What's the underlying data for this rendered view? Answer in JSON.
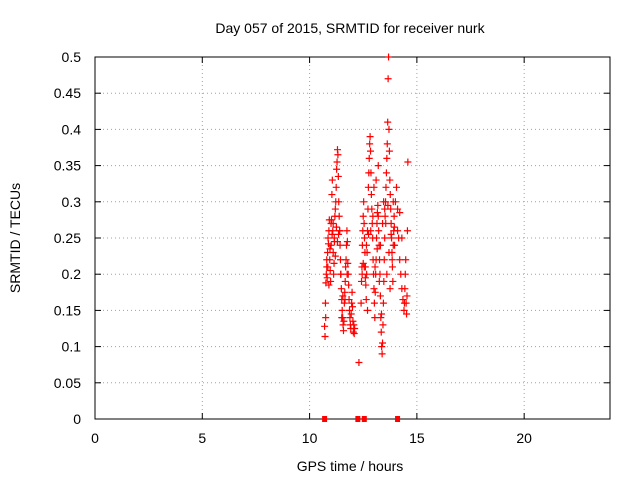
{
  "chart_data": {
    "type": "scatter",
    "title": "Day 057 of 2015, SRMTID for receiver nurk",
    "xlabel": "GPS time / hours",
    "ylabel": "SRMTID / TECUs",
    "xlim": [
      0,
      24
    ],
    "ylim": [
      0,
      0.5
    ],
    "grid": true,
    "marker": "+",
    "marker_color": "#ff0000",
    "x_ticks": [
      0,
      5,
      10,
      15,
      20
    ],
    "x_tick_labels": [
      "0",
      "5",
      "10",
      "15",
      "20"
    ],
    "y_ticks": [
      0,
      0.05,
      0.1,
      0.15,
      0.2,
      0.25,
      0.3,
      0.35,
      0.4,
      0.45,
      0.5
    ],
    "y_tick_labels": [
      "0",
      "0.05",
      "0.1",
      "0.15",
      "0.2",
      "0.25",
      "0.3",
      "0.35",
      "0.4",
      "0.45",
      "0.5"
    ],
    "series": [
      {
        "name": "SRMTID",
        "points": [
          [
            10.7,
            0.128
          ],
          [
            10.72,
            0.114
          ],
          [
            10.74,
            0.16
          ],
          [
            10.76,
            0.188
          ],
          [
            10.78,
            0.2
          ],
          [
            10.8,
            0.21
          ],
          [
            10.82,
            0.195
          ],
          [
            10.84,
            0.23
          ],
          [
            10.86,
            0.25
          ],
          [
            10.88,
            0.242
          ],
          [
            10.9,
            0.26
          ],
          [
            10.92,
            0.275
          ],
          [
            10.94,
            0.22
          ],
          [
            10.96,
            0.205
          ],
          [
            10.98,
            0.19
          ],
          [
            11.0,
            0.24
          ],
          [
            11.02,
            0.275
          ],
          [
            11.04,
            0.31
          ],
          [
            11.06,
            0.33
          ],
          [
            11.08,
            0.26
          ],
          [
            11.1,
            0.23
          ],
          [
            11.12,
            0.2
          ],
          [
            11.14,
            0.215
          ],
          [
            11.16,
            0.245
          ],
          [
            11.18,
            0.28
          ],
          [
            11.2,
            0.29
          ],
          [
            11.22,
            0.3
          ],
          [
            11.24,
            0.32
          ],
          [
            11.26,
            0.345
          ],
          [
            11.28,
            0.355
          ],
          [
            11.3,
            0.372
          ],
          [
            11.32,
            0.365
          ],
          [
            11.34,
            0.335
          ],
          [
            11.36,
            0.3
          ],
          [
            11.38,
            0.28
          ],
          [
            11.4,
            0.26
          ],
          [
            11.42,
            0.24
          ],
          [
            11.44,
            0.22
          ],
          [
            11.46,
            0.2
          ],
          [
            11.48,
            0.18
          ],
          [
            11.5,
            0.165
          ],
          [
            11.52,
            0.15
          ],
          [
            11.54,
            0.14
          ],
          [
            11.56,
            0.13
          ],
          [
            11.58,
            0.122
          ],
          [
            11.6,
            0.135
          ],
          [
            11.62,
            0.16
          ],
          [
            11.64,
            0.175
          ],
          [
            11.66,
            0.19
          ],
          [
            11.68,
            0.21
          ],
          [
            11.7,
            0.22
          ],
          [
            11.72,
            0.24
          ],
          [
            11.74,
            0.26
          ],
          [
            11.76,
            0.245
          ],
          [
            11.78,
            0.215
          ],
          [
            11.8,
            0.2
          ],
          [
            11.82,
            0.185
          ],
          [
            11.84,
            0.165
          ],
          [
            11.86,
            0.15
          ],
          [
            11.88,
            0.14
          ],
          [
            11.9,
            0.13
          ],
          [
            11.92,
            0.125
          ],
          [
            11.94,
            0.145
          ],
          [
            11.96,
            0.16
          ],
          [
            11.98,
            0.175
          ],
          [
            12.0,
            0.155
          ],
          [
            12.02,
            0.135
          ],
          [
            12.04,
            0.12
          ],
          [
            12.06,
            0.13
          ],
          [
            12.08,
            0.118
          ],
          [
            12.1,
            0.125
          ],
          [
            11.0,
            0.27
          ],
          [
            11.05,
            0.255
          ],
          [
            11.15,
            0.25
          ],
          [
            11.25,
            0.265
          ],
          [
            11.35,
            0.255
          ],
          [
            11.45,
            0.2
          ],
          [
            11.55,
            0.17
          ],
          [
            11.65,
            0.165
          ],
          [
            11.75,
            0.2
          ],
          [
            10.75,
            0.14
          ],
          [
            10.8,
            0.22
          ],
          [
            10.85,
            0.21
          ],
          [
            10.9,
            0.185
          ],
          [
            10.95,
            0.235
          ],
          [
            11.1,
            0.27
          ],
          [
            11.2,
            0.225
          ],
          [
            11.3,
            0.245
          ],
          [
            11.4,
            0.26
          ],
          [
            11.5,
            0.14
          ],
          [
            12.3,
            0.078
          ],
          [
            12.4,
            0.16
          ],
          [
            12.42,
            0.19
          ],
          [
            12.44,
            0.21
          ],
          [
            12.46,
            0.24
          ],
          [
            12.48,
            0.26
          ],
          [
            12.5,
            0.28
          ],
          [
            12.52,
            0.3
          ],
          [
            12.54,
            0.27
          ],
          [
            12.56,
            0.25
          ],
          [
            12.58,
            0.23
          ],
          [
            12.6,
            0.21
          ],
          [
            12.62,
            0.185
          ],
          [
            12.64,
            0.165
          ],
          [
            12.66,
            0.2
          ],
          [
            12.68,
            0.23
          ],
          [
            12.7,
            0.26
          ],
          [
            12.72,
            0.29
          ],
          [
            12.74,
            0.32
          ],
          [
            12.76,
            0.34
          ],
          [
            12.78,
            0.36
          ],
          [
            12.8,
            0.38
          ],
          [
            12.82,
            0.39
          ],
          [
            12.84,
            0.37
          ],
          [
            12.86,
            0.34
          ],
          [
            12.88,
            0.31
          ],
          [
            12.9,
            0.29
          ],
          [
            12.92,
            0.27
          ],
          [
            12.94,
            0.25
          ],
          [
            12.96,
            0.22
          ],
          [
            12.98,
            0.2
          ],
          [
            13.0,
            0.18
          ],
          [
            13.02,
            0.16
          ],
          [
            13.04,
            0.14
          ],
          [
            13.06,
            0.175
          ],
          [
            13.08,
            0.2
          ],
          [
            13.1,
            0.22
          ],
          [
            13.12,
            0.25
          ],
          [
            13.14,
            0.27
          ],
          [
            13.16,
            0.285
          ],
          [
            13.18,
            0.295
          ],
          [
            13.2,
            0.28
          ],
          [
            13.22,
            0.26
          ],
          [
            13.24,
            0.24
          ],
          [
            13.26,
            0.22
          ],
          [
            13.28,
            0.2
          ],
          [
            13.3,
            0.17
          ],
          [
            13.32,
            0.14
          ],
          [
            13.34,
            0.12
          ],
          [
            13.36,
            0.1
          ],
          [
            13.38,
            0.09
          ],
          [
            13.4,
            0.105
          ],
          [
            13.42,
            0.13
          ],
          [
            13.44,
            0.16
          ],
          [
            13.46,
            0.19
          ],
          [
            13.48,
            0.22
          ],
          [
            13.5,
            0.25
          ],
          [
            13.52,
            0.28
          ],
          [
            13.54,
            0.3
          ],
          [
            13.56,
            0.32
          ],
          [
            13.58,
            0.34
          ],
          [
            13.6,
            0.36
          ],
          [
            13.62,
            0.38
          ],
          [
            13.64,
            0.41
          ],
          [
            13.66,
            0.47
          ],
          [
            13.68,
            0.5
          ],
          [
            13.7,
            0.4
          ],
          [
            13.72,
            0.37
          ],
          [
            13.74,
            0.33
          ],
          [
            13.76,
            0.31
          ],
          [
            13.78,
            0.29
          ],
          [
            13.8,
            0.27
          ],
          [
            13.82,
            0.25
          ],
          [
            13.84,
            0.23
          ],
          [
            13.86,
            0.21
          ],
          [
            13.88,
            0.19
          ],
          [
            13.9,
            0.3
          ],
          [
            13.92,
            0.26
          ],
          [
            13.94,
            0.28
          ],
          [
            13.96,
            0.24
          ],
          [
            14.0,
            0.3
          ],
          [
            14.05,
            0.32
          ],
          [
            14.1,
            0.29
          ],
          [
            14.15,
            0.25
          ],
          [
            14.2,
            0.22
          ],
          [
            14.25,
            0.2
          ],
          [
            14.3,
            0.18
          ],
          [
            14.35,
            0.165
          ],
          [
            14.4,
            0.15
          ],
          [
            14.42,
            0.16
          ],
          [
            14.44,
            0.18
          ],
          [
            14.46,
            0.2
          ],
          [
            14.48,
            0.22
          ],
          [
            14.5,
            0.16
          ],
          [
            14.52,
            0.145
          ],
          [
            14.54,
            0.17
          ],
          [
            14.56,
            0.26
          ],
          [
            14.58,
            0.355
          ],
          [
            14.3,
            0.25
          ],
          [
            14.2,
            0.285
          ],
          [
            12.45,
            0.2
          ],
          [
            12.55,
            0.21
          ],
          [
            12.65,
            0.24
          ],
          [
            12.75,
            0.255
          ],
          [
            12.85,
            0.26
          ],
          [
            12.95,
            0.28
          ],
          [
            13.05,
            0.21
          ],
          [
            13.15,
            0.235
          ],
          [
            13.25,
            0.19
          ],
          [
            13.35,
            0.145
          ],
          [
            13.45,
            0.3
          ],
          [
            13.55,
            0.27
          ],
          [
            13.65,
            0.295
          ],
          [
            13.75,
            0.18
          ],
          [
            13.85,
            0.22
          ],
          [
            13.95,
            0.265
          ],
          [
            12.7,
            0.15
          ],
          [
            12.6,
            0.195
          ],
          [
            12.5,
            0.215
          ],
          [
            13.0,
            0.32
          ],
          [
            13.1,
            0.33
          ],
          [
            13.2,
            0.35
          ],
          [
            13.3,
            0.24
          ],
          [
            13.4,
            0.27
          ],
          [
            13.5,
            0.29
          ],
          [
            13.6,
            0.2
          ],
          [
            13.7,
            0.23
          ],
          [
            13.8,
            0.255
          ],
          [
            13.9,
            0.24
          ],
          [
            14.1,
            0.26
          ]
        ]
      }
    ],
    "zero_markers": [
      10.7,
      12.25,
      12.55,
      14.1
    ]
  }
}
